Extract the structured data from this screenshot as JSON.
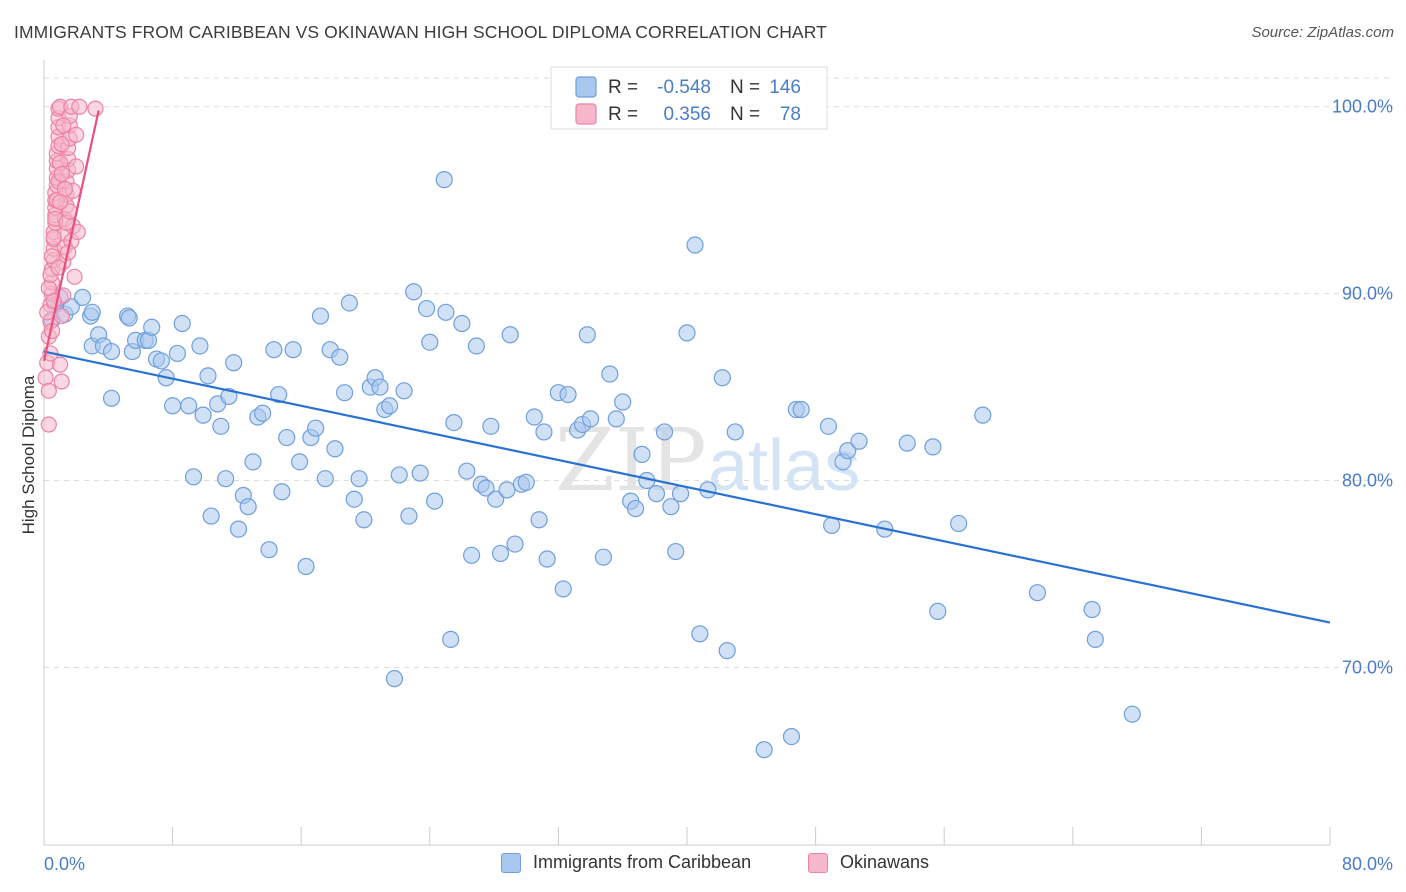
{
  "title": "IMMIGRANTS FROM CARIBBEAN VS OKINAWAN HIGH SCHOOL DIPLOMA CORRELATION CHART",
  "source": "Source: ZipAtlas.com",
  "watermark": {
    "zip": "ZIP",
    "atlas": "atlas"
  },
  "legend_top": {
    "rows": [
      {
        "r_label": "R =",
        "r_value": "-0.548",
        "n_label": "N =",
        "n_value": "146"
      },
      {
        "r_label": "R =",
        "r_value": "0.356",
        "n_label": "N =",
        "n_value": "78"
      }
    ]
  },
  "legend_bottom": {
    "items": [
      {
        "label": "Immigrants from Caribbean"
      },
      {
        "label": "Okinawans"
      }
    ]
  },
  "colors": {
    "blue_fill": "#aac8ef",
    "blue_stroke": "#6f9fdc",
    "blue_line": "#2a72d1",
    "pink_fill": "#f6b7cb",
    "pink_stroke": "#ec82a4",
    "pink_line": "#e9507c",
    "tick_text": "#4a7cc7",
    "grid": "#dddddd"
  },
  "chart_data": {
    "type": "scatter",
    "title": "IMMIGRANTS FROM CARIBBEAN VS OKINAWAN HIGH SCHOOL DIPLOMA CORRELATION CHART",
    "xlabel": "",
    "ylabel": "High School Diploma",
    "xlim": [
      0,
      80
    ],
    "ylim": [
      60.5,
      102.5
    ],
    "x_tick_labels": [
      "0.0%",
      "80.0%"
    ],
    "y_ticks": [
      70,
      80,
      90,
      100
    ],
    "y_tick_labels": [
      "70.0%",
      "80.0%",
      "90.0%",
      "100.0%"
    ],
    "grid": true,
    "legend_placement": "top-center",
    "series": [
      {
        "name": "Immigrants from Caribbean",
        "r": -0.548,
        "n": 146,
        "trend": {
          "x": [
            0,
            80
          ],
          "y": [
            86.9,
            72.4
          ]
        },
        "points": [
          [
            0.5,
            88.6
          ],
          [
            0.7,
            89.4
          ],
          [
            1.0,
            89.8
          ],
          [
            1.3,
            88.9
          ],
          [
            1.7,
            89.3
          ],
          [
            2.4,
            89.8
          ],
          [
            2.9,
            88.8
          ],
          [
            3.0,
            89.0
          ],
          [
            3.0,
            87.2
          ],
          [
            3.4,
            87.8
          ],
          [
            3.7,
            87.2
          ],
          [
            4.2,
            86.9
          ],
          [
            4.2,
            84.4
          ],
          [
            5.2,
            88.8
          ],
          [
            5.3,
            88.7
          ],
          [
            5.5,
            86.9
          ],
          [
            5.7,
            87.5
          ],
          [
            6.3,
            87.5
          ],
          [
            6.5,
            87.5
          ],
          [
            6.7,
            88.2
          ],
          [
            7.0,
            86.5
          ],
          [
            7.3,
            86.4
          ],
          [
            7.6,
            85.5
          ],
          [
            8.0,
            84.0
          ],
          [
            8.3,
            86.8
          ],
          [
            8.6,
            88.4
          ],
          [
            9.0,
            84.0
          ],
          [
            9.3,
            80.2
          ],
          [
            9.7,
            87.2
          ],
          [
            9.9,
            83.5
          ],
          [
            10.2,
            85.6
          ],
          [
            10.4,
            78.1
          ],
          [
            10.8,
            84.1
          ],
          [
            11.0,
            82.9
          ],
          [
            11.3,
            80.1
          ],
          [
            11.5,
            84.5
          ],
          [
            11.8,
            86.3
          ],
          [
            12.1,
            77.4
          ],
          [
            12.4,
            79.2
          ],
          [
            12.7,
            78.6
          ],
          [
            13.0,
            81.0
          ],
          [
            13.3,
            83.4
          ],
          [
            13.6,
            83.6
          ],
          [
            14.0,
            76.3
          ],
          [
            14.3,
            87.0
          ],
          [
            14.6,
            84.6
          ],
          [
            14.8,
            79.4
          ],
          [
            15.1,
            82.3
          ],
          [
            15.5,
            87.0
          ],
          [
            15.9,
            81.0
          ],
          [
            16.3,
            75.4
          ],
          [
            16.6,
            82.3
          ],
          [
            16.9,
            82.8
          ],
          [
            17.2,
            88.8
          ],
          [
            17.5,
            80.1
          ],
          [
            17.8,
            87.0
          ],
          [
            18.1,
            81.7
          ],
          [
            18.4,
            86.6
          ],
          [
            18.7,
            84.7
          ],
          [
            19.0,
            89.5
          ],
          [
            19.3,
            79.0
          ],
          [
            19.6,
            80.1
          ],
          [
            19.9,
            77.9
          ],
          [
            20.3,
            85.0
          ],
          [
            20.6,
            85.5
          ],
          [
            20.9,
            85.0
          ],
          [
            21.2,
            83.8
          ],
          [
            21.5,
            84.0
          ],
          [
            21.8,
            69.4
          ],
          [
            22.1,
            80.3
          ],
          [
            22.4,
            84.8
          ],
          [
            22.7,
            78.1
          ],
          [
            23.0,
            90.1
          ],
          [
            23.4,
            80.4
          ],
          [
            23.8,
            89.2
          ],
          [
            24.0,
            87.4
          ],
          [
            24.3,
            78.9
          ],
          [
            25.0,
            89.0
          ],
          [
            25.3,
            71.5
          ],
          [
            25.5,
            83.1
          ],
          [
            26.0,
            88.4
          ],
          [
            26.3,
            80.5
          ],
          [
            26.6,
            76.0
          ],
          [
            26.9,
            87.2
          ],
          [
            27.2,
            79.8
          ],
          [
            27.5,
            79.6
          ],
          [
            27.8,
            82.9
          ],
          [
            28.1,
            79.0
          ],
          [
            28.4,
            76.1
          ],
          [
            28.8,
            79.5
          ],
          [
            29.0,
            87.8
          ],
          [
            29.3,
            76.6
          ],
          [
            29.7,
            79.8
          ],
          [
            30.0,
            79.9
          ],
          [
            30.5,
            83.4
          ],
          [
            30.8,
            77.9
          ],
          [
            31.1,
            82.6
          ],
          [
            31.3,
            75.8
          ],
          [
            32.0,
            84.7
          ],
          [
            32.3,
            74.2
          ],
          [
            32.6,
            84.6
          ],
          [
            33.2,
            82.7
          ],
          [
            33.5,
            83.0
          ],
          [
            33.8,
            87.8
          ],
          [
            34.0,
            83.3
          ],
          [
            34.8,
            75.9
          ],
          [
            35.2,
            85.7
          ],
          [
            35.6,
            83.3
          ],
          [
            36.0,
            84.2
          ],
          [
            36.5,
            78.9
          ],
          [
            36.8,
            78.5
          ],
          [
            37.2,
            81.4
          ],
          [
            37.5,
            80.0
          ],
          [
            38.1,
            79.3
          ],
          [
            38.6,
            82.6
          ],
          [
            39.0,
            78.6
          ],
          [
            39.3,
            76.2
          ],
          [
            39.6,
            79.3
          ],
          [
            40.0,
            87.9
          ],
          [
            40.5,
            92.6
          ],
          [
            40.8,
            71.8
          ],
          [
            41.3,
            79.5
          ],
          [
            42.2,
            85.5
          ],
          [
            42.5,
            70.9
          ],
          [
            43.0,
            82.6
          ],
          [
            44.8,
            65.6
          ],
          [
            46.5,
            66.3
          ],
          [
            46.8,
            83.8
          ],
          [
            47.1,
            83.8
          ],
          [
            48.8,
            82.9
          ],
          [
            49.0,
            77.6
          ],
          [
            49.7,
            81.0
          ],
          [
            50.0,
            81.6
          ],
          [
            50.7,
            82.1
          ],
          [
            52.3,
            77.4
          ],
          [
            53.7,
            82.0
          ],
          [
            55.3,
            81.8
          ],
          [
            55.6,
            73.0
          ],
          [
            56.9,
            77.7
          ],
          [
            58.4,
            83.5
          ],
          [
            61.8,
            74.0
          ],
          [
            65.2,
            73.1
          ],
          [
            65.4,
            71.5
          ],
          [
            67.7,
            67.5
          ],
          [
            24.9,
            96.1
          ]
        ]
      },
      {
        "name": "Okinawans",
        "r": 0.356,
        "n": 78,
        "trend": {
          "x": [
            0.0,
            3.4
          ],
          "y": [
            86.4,
            99.8
          ]
        },
        "points": [
          [
            0.1,
            85.5
          ],
          [
            0.2,
            86.3
          ],
          [
            0.3,
            83.0
          ],
          [
            0.3,
            87.7
          ],
          [
            0.4,
            88.5
          ],
          [
            0.4,
            89.4
          ],
          [
            0.5,
            90.0
          ],
          [
            0.5,
            90.6
          ],
          [
            0.5,
            91.3
          ],
          [
            0.6,
            91.8
          ],
          [
            0.6,
            92.4
          ],
          [
            0.6,
            92.9
          ],
          [
            0.6,
            93.3
          ],
          [
            0.7,
            93.8
          ],
          [
            0.7,
            94.2
          ],
          [
            0.7,
            94.6
          ],
          [
            0.7,
            95.0
          ],
          [
            0.7,
            95.4
          ],
          [
            0.8,
            95.8
          ],
          [
            0.8,
            96.2
          ],
          [
            0.8,
            96.7
          ],
          [
            0.8,
            97.1
          ],
          [
            0.8,
            97.5
          ],
          [
            0.9,
            97.9
          ],
          [
            0.9,
            98.4
          ],
          [
            0.9,
            98.9
          ],
          [
            0.9,
            99.4
          ],
          [
            0.9,
            99.9
          ],
          [
            1.0,
            100.0
          ],
          [
            1.0,
            86.2
          ],
          [
            1.1,
            85.3
          ],
          [
            1.1,
            88.8
          ],
          [
            1.2,
            89.9
          ],
          [
            1.2,
            91.7
          ],
          [
            1.3,
            92.5
          ],
          [
            1.3,
            93.2
          ],
          [
            1.3,
            94.0
          ],
          [
            1.4,
            94.7
          ],
          [
            1.4,
            95.3
          ],
          [
            1.4,
            96.0
          ],
          [
            1.5,
            96.6
          ],
          [
            1.5,
            97.2
          ],
          [
            1.5,
            97.8
          ],
          [
            1.6,
            98.3
          ],
          [
            1.6,
            99.0
          ],
          [
            1.6,
            99.5
          ],
          [
            1.7,
            100.0
          ],
          [
            1.7,
            92.8
          ],
          [
            1.8,
            93.6
          ],
          [
            1.8,
            95.5
          ],
          [
            1.9,
            90.9
          ],
          [
            2.0,
            96.8
          ],
          [
            2.0,
            98.5
          ],
          [
            2.1,
            93.3
          ],
          [
            2.2,
            100.0
          ],
          [
            0.2,
            89.0
          ],
          [
            0.3,
            90.3
          ],
          [
            0.4,
            91.0
          ],
          [
            0.5,
            92.0
          ],
          [
            0.6,
            93.0
          ],
          [
            0.7,
            94.0
          ],
          [
            0.8,
            95.0
          ],
          [
            0.9,
            96.0
          ],
          [
            1.0,
            97.0
          ],
          [
            1.1,
            98.0
          ],
          [
            1.2,
            99.0
          ],
          [
            1.3,
            95.6
          ],
          [
            1.4,
            93.8
          ],
          [
            1.5,
            92.2
          ],
          [
            1.6,
            94.4
          ],
          [
            0.4,
            86.8
          ],
          [
            0.5,
            88.0
          ],
          [
            0.3,
            84.8
          ],
          [
            0.6,
            89.6
          ],
          [
            0.9,
            91.4
          ],
          [
            1.1,
            96.4
          ],
          [
            3.2,
            99.9
          ],
          [
            1.0,
            94.9
          ]
        ]
      }
    ]
  }
}
